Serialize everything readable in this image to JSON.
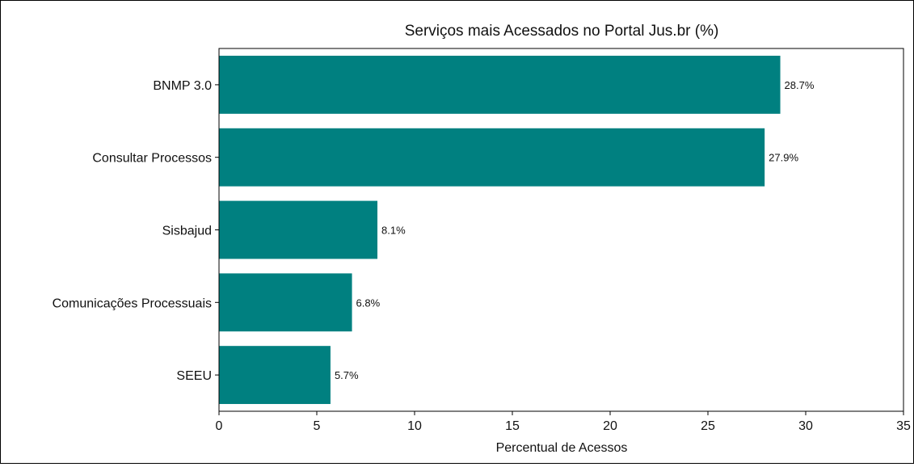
{
  "chart_data": {
    "type": "bar",
    "orientation": "horizontal",
    "title": "Serviços mais Acessados no Portal Jus.br (%)",
    "xlabel": "Percentual de Acessos",
    "ylabel": "",
    "categories": [
      "BNMP 3.0",
      "Consultar Processos",
      "Sisbajud",
      "Comunicações Processuais",
      "SEEU"
    ],
    "values": [
      28.7,
      27.9,
      8.1,
      6.8,
      5.7
    ],
    "value_labels": [
      "28.7%",
      "27.9%",
      "8.1%",
      "6.8%",
      "5.7%"
    ],
    "xlim": [
      0,
      35
    ],
    "xticks": [
      0,
      5,
      10,
      15,
      20,
      25,
      30,
      35
    ],
    "xtick_labels": [
      "0",
      "5",
      "10",
      "15",
      "20",
      "25",
      "30",
      "35"
    ],
    "grid": false,
    "bar_color": "#008080"
  }
}
